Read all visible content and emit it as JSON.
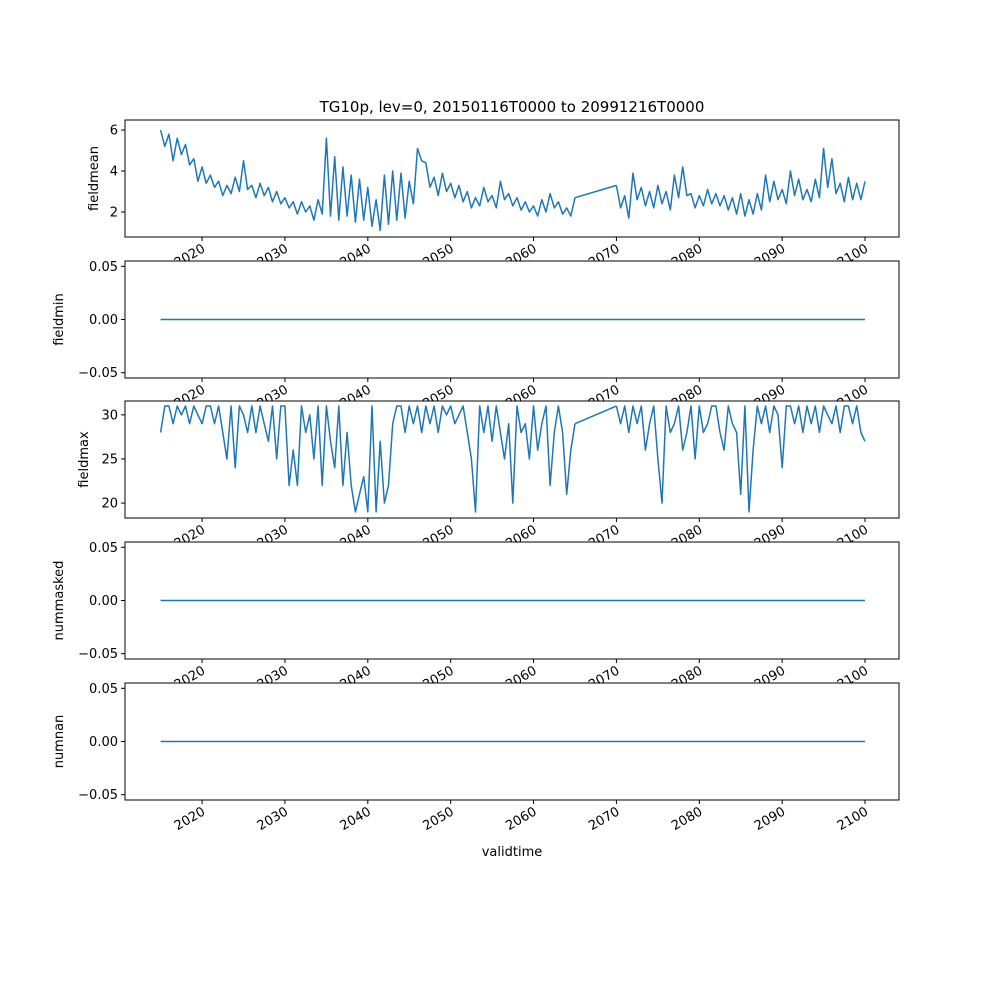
{
  "chart_data": {
    "type": "line",
    "title": "TG10p, lev=0, 20150116T0000 to 20991216T0000",
    "xlabel": "validtime",
    "xlim": [
      2010.7,
      2104.1
    ],
    "xticks": [
      2020,
      2030,
      2040,
      2050,
      2060,
      2070,
      2080,
      2090,
      2100
    ],
    "xtick_labels": [
      "2020",
      "2030",
      "2040",
      "2050",
      "2060",
      "2070",
      "2080",
      "2090",
      "2100"
    ],
    "color": "#1f77b4",
    "grid": false,
    "panels": [
      {
        "ylabel": "fieldmean",
        "ylim": [
          0.78,
          6.49
        ],
        "yticks": [
          2,
          4,
          6
        ],
        "ytick_labels": [
          "2",
          "4",
          "6"
        ],
        "segments": [
          {
            "x_start": 2015.0,
            "x_step": 0.5,
            "values": [
              6.0,
              5.2,
              5.8,
              4.5,
              5.6,
              4.8,
              5.3,
              4.3,
              4.6,
              3.5,
              4.2,
              3.4,
              3.8,
              3.2,
              3.5,
              2.8,
              3.3,
              2.9,
              3.7,
              3.0,
              4.5,
              3.1,
              3.3,
              2.7,
              3.4,
              2.8,
              3.2,
              2.5,
              3.0,
              2.4,
              2.7,
              2.2,
              2.5,
              1.9,
              2.5,
              2.0,
              2.3,
              1.6,
              2.6,
              1.9,
              5.6,
              1.8,
              4.7,
              1.6,
              4.2,
              1.8,
              3.8,
              1.5,
              3.6,
              1.6,
              3.2,
              1.3,
              2.6,
              1.1,
              3.8,
              1.4,
              4.0,
              1.6,
              3.9,
              1.7,
              3.5,
              2.4,
              5.1,
              4.5,
              4.4,
              3.2,
              3.7,
              2.8,
              3.9,
              3.0,
              3.4,
              2.7,
              3.3,
              2.5,
              3.0,
              2.2,
              2.7,
              2.3,
              3.2,
              2.5,
              2.8,
              2.2,
              3.5,
              2.6,
              2.9,
              2.3,
              2.7,
              2.1,
              2.5,
              2.0,
              2.3,
              1.8,
              2.6,
              2.0,
              2.9,
              2.2,
              2.5,
              1.9,
              2.2,
              1.8,
              2.7
            ]
          },
          {
            "x_start": 2070.0,
            "x_step": 0.5,
            "values": [
              3.3,
              2.2,
              2.8,
              1.7,
              3.9,
              2.6,
              3.2,
              2.3,
              3.0,
              2.2,
              3.3,
              2.4,
              3.0,
              2.1,
              3.8,
              2.7,
              4.2,
              2.8,
              2.9,
              2.2,
              2.8,
              2.3,
              3.1,
              2.4,
              2.9,
              2.3,
              2.8,
              2.1,
              2.7,
              1.9,
              2.9,
              1.8,
              2.6,
              1.9,
              2.9,
              2.1,
              3.8,
              2.5,
              3.5,
              2.6,
              3.1,
              2.4,
              4.0,
              2.8,
              3.6,
              2.6,
              3.1,
              2.5,
              3.6,
              2.7,
              5.1,
              3.2,
              4.6,
              2.9,
              3.4,
              2.5,
              3.7,
              2.6,
              3.4,
              2.6,
              3.5
            ]
          }
        ]
      },
      {
        "ylabel": "fieldmin",
        "ylim": [
          -0.055,
          0.055
        ],
        "yticks": [
          -0.05,
          0.0,
          0.05
        ],
        "ytick_labels": [
          "−0.05",
          "0.00",
          "0.05"
        ],
        "segments": [
          {
            "x_start": 2015.0,
            "x_step": 85.0,
            "values": [
              0,
              0
            ]
          }
        ]
      },
      {
        "ylabel": "fieldmax",
        "ylim": [
          18.31,
          31.57
        ],
        "yticks": [
          20,
          25,
          30
        ],
        "ytick_labels": [
          "20",
          "25",
          "30"
        ],
        "segments": [
          {
            "x_start": 2015.0,
            "x_step": 0.5,
            "values": [
              28,
              31,
              31,
              29,
              31,
              30,
              31,
              29,
              31,
              30,
              29,
              31,
              31,
              29,
              31,
              28,
              25,
              31,
              24,
              31,
              30,
              28,
              31,
              28,
              31,
              29,
              27,
              31,
              25,
              31,
              31,
              22,
              26,
              22,
              31,
              28,
              30,
              25,
              31,
              22,
              31,
              27,
              24,
              31,
              22,
              28,
              22,
              19,
              21,
              23,
              19,
              31,
              19,
              27,
              20,
              22,
              29,
              31,
              31,
              28,
              31,
              29,
              31,
              28,
              31,
              29,
              31,
              28,
              31,
              30,
              31,
              29,
              30,
              31,
              28,
              25,
              19,
              31,
              28,
              31,
              27,
              31,
              28,
              25,
              29,
              20,
              31,
              28,
              29,
              25,
              31,
              26,
              29,
              31,
              22,
              28,
              31,
              28,
              21,
              26,
              29
            ]
          },
          {
            "x_start": 2070.0,
            "x_step": 0.5,
            "values": [
              31,
              29,
              31,
              28,
              31,
              29,
              31,
              26,
              29,
              31,
              25,
              20,
              31,
              28,
              29,
              31,
              26,
              28,
              31,
              25,
              31,
              28,
              29,
              31,
              31,
              28,
              26,
              31,
              29,
              28,
              21,
              31,
              19,
              26,
              31,
              29,
              31,
              28,
              31,
              30,
              24,
              31,
              31,
              29,
              31,
              28,
              31,
              29,
              31,
              28,
              31,
              30,
              29,
              31,
              28,
              31,
              31,
              29,
              31,
              28,
              27
            ]
          }
        ]
      },
      {
        "ylabel": "nummasked",
        "ylim": [
          -0.055,
          0.055
        ],
        "yticks": [
          -0.05,
          0.0,
          0.05
        ],
        "ytick_labels": [
          "−0.05",
          "0.00",
          "0.05"
        ],
        "segments": [
          {
            "x_start": 2015.0,
            "x_step": 85.0,
            "values": [
              0,
              0
            ]
          }
        ]
      },
      {
        "ylabel": "numnan",
        "ylim": [
          -0.055,
          0.055
        ],
        "yticks": [
          -0.05,
          0.0,
          0.05
        ],
        "ytick_labels": [
          "−0.05",
          "0.00",
          "0.05"
        ],
        "segments": [
          {
            "x_start": 2015.0,
            "x_step": 85.0,
            "values": [
              0,
              0
            ]
          }
        ]
      }
    ]
  }
}
